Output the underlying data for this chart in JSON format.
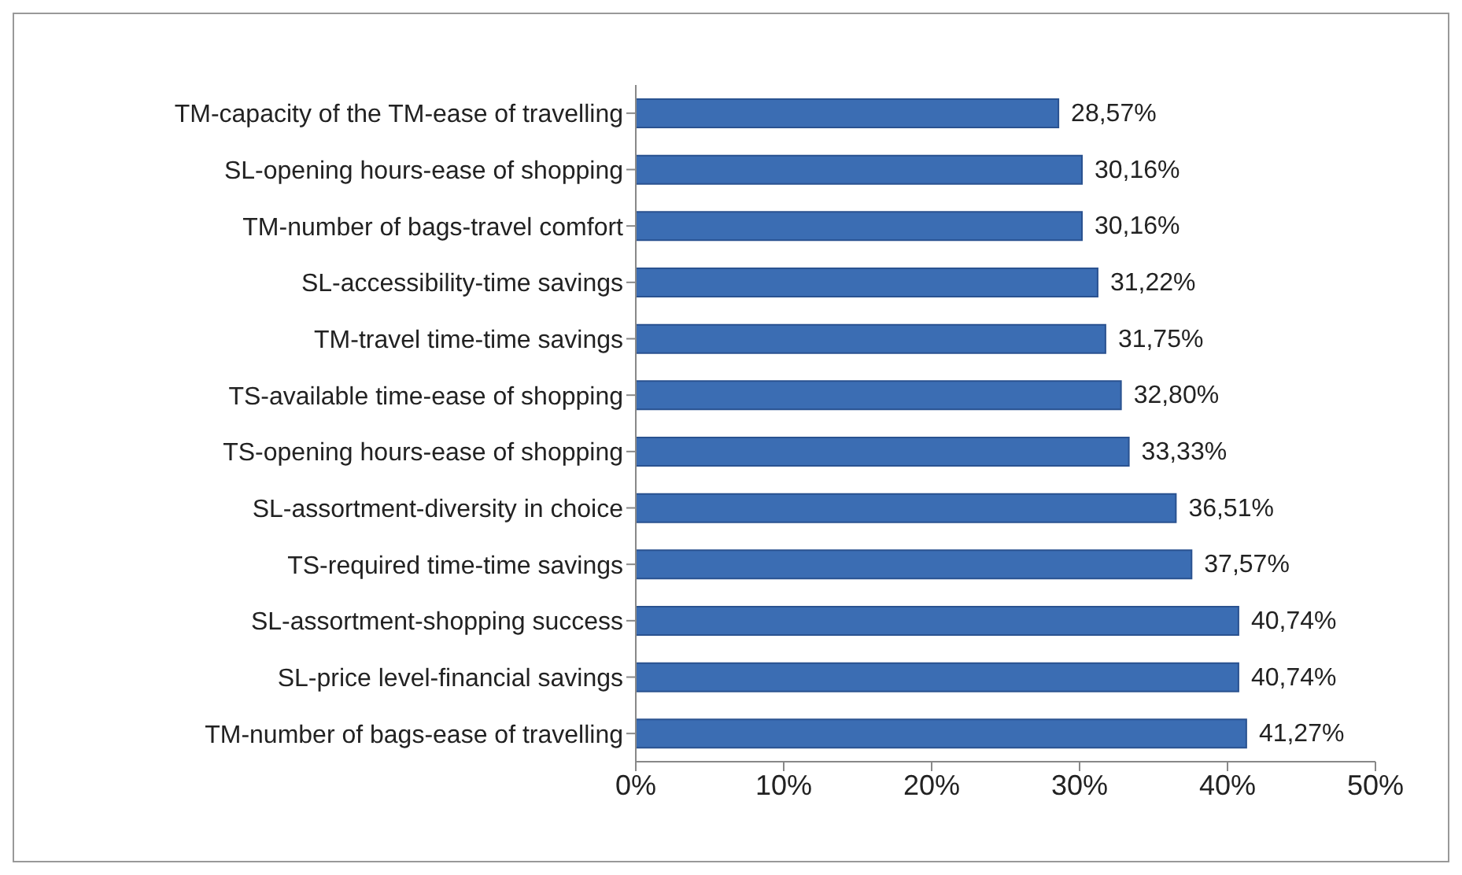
{
  "chart_data": {
    "type": "bar",
    "orientation": "horizontal",
    "categories": [
      "TM-capacity of the TM-ease of travelling",
      "SL-opening hours-ease of shopping",
      "TM-number of bags-travel comfort",
      "SL-accessibility-time savings",
      "TM-travel time-time savings",
      "TS-available time-ease of shopping",
      "TS-opening hours-ease of shopping",
      "SL-assortment-diversity in choice",
      "TS-required time-time savings",
      "SL-assortment-shopping success",
      "SL-price level-financial savings",
      "TM-number of bags-ease of travelling"
    ],
    "values": [
      28.57,
      30.16,
      30.16,
      31.22,
      31.75,
      32.8,
      33.33,
      36.51,
      37.57,
      40.74,
      40.74,
      41.27
    ],
    "value_labels": [
      "28,57%",
      "30,16%",
      "30,16%",
      "31,22%",
      "31,75%",
      "32,80%",
      "33,33%",
      "36,51%",
      "37,57%",
      "40,74%",
      "40,74%",
      "41,27%"
    ],
    "color": "#3b6db3",
    "xlim": [
      0,
      50
    ],
    "xticks": [
      {
        "value": 0,
        "label": "0%"
      },
      {
        "value": 10,
        "label": "10%"
      },
      {
        "value": 20,
        "label": "20%"
      },
      {
        "value": 30,
        "label": "30%"
      },
      {
        "value": 40,
        "label": "40%"
      },
      {
        "value": 50,
        "label": "50%"
      }
    ],
    "grid": false
  }
}
